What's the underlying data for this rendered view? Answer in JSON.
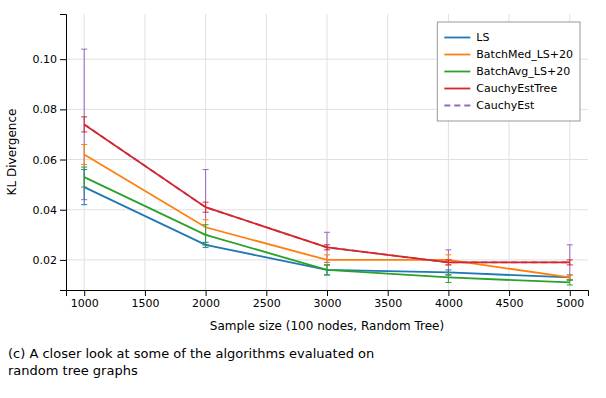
{
  "chart_data": {
    "type": "line",
    "title": "(c) A closer look at some of the algorithms evaluated on\nrandom tree graphs",
    "xlabel": "Sample size (100 nodes, Random Tree)",
    "ylabel": "KL Divergence",
    "x": [
      1000,
      2000,
      3000,
      4000,
      5000
    ],
    "series": [
      {
        "name": "LS",
        "color": "#1f77b4",
        "line_style": "solid",
        "values": [
          0.049,
          0.026,
          0.016,
          0.015,
          0.013
        ],
        "error_low": [
          0.007,
          0.001,
          0.002,
          0.001,
          0.001
        ],
        "error_high": [
          0.007,
          0.001,
          0.002,
          0.001,
          0.001
        ]
      },
      {
        "name": "BatchMed_LS+20",
        "color": "#ff7f0e",
        "line_style": "solid",
        "values": [
          0.062,
          0.033,
          0.02,
          0.02,
          0.013
        ],
        "error_low": [
          0.004,
          0.003,
          0.002,
          0.002,
          0.001
        ],
        "error_high": [
          0.004,
          0.003,
          0.002,
          0.002,
          0.001
        ]
      },
      {
        "name": "BatchAvg_LS+20",
        "color": "#2ca02c",
        "line_style": "solid",
        "values": [
          0.053,
          0.03,
          0.016,
          0.013,
          0.011
        ],
        "error_low": [
          0.004,
          0.004,
          0.002,
          0.002,
          0.001
        ],
        "error_high": [
          0.004,
          0.004,
          0.002,
          0.002,
          0.001
        ]
      },
      {
        "name": "CauchyEstTree",
        "color": "#d62728",
        "line_style": "solid",
        "values": [
          0.074,
          0.041,
          0.025,
          0.019,
          0.019
        ],
        "error_low": [
          0.003,
          0.002,
          0.001,
          0.001,
          0.001
        ],
        "error_high": [
          0.003,
          0.002,
          0.001,
          0.001,
          0.001
        ]
      },
      {
        "name": "CauchyEst",
        "color": "#9467bd",
        "line_style": "dashed",
        "values": [
          0.074,
          0.041,
          0.025,
          0.019,
          0.019
        ],
        "error_low": [
          0.03,
          0.015,
          0.006,
          0.005,
          0.007
        ],
        "error_high": [
          0.03,
          0.015,
          0.006,
          0.005,
          0.007
        ]
      }
    ],
    "xlim": [
      850,
      5150
    ],
    "ylim": [
      0.008,
      0.118
    ],
    "xticks": [
      1000,
      1500,
      2000,
      2500,
      3000,
      3500,
      4000,
      4500,
      5000
    ],
    "yticks": [
      0.02,
      0.04,
      0.06,
      0.08,
      {
        "value": 0.1,
        "label": "0.10"
      }
    ],
    "grid": true,
    "legend": "upper right"
  }
}
